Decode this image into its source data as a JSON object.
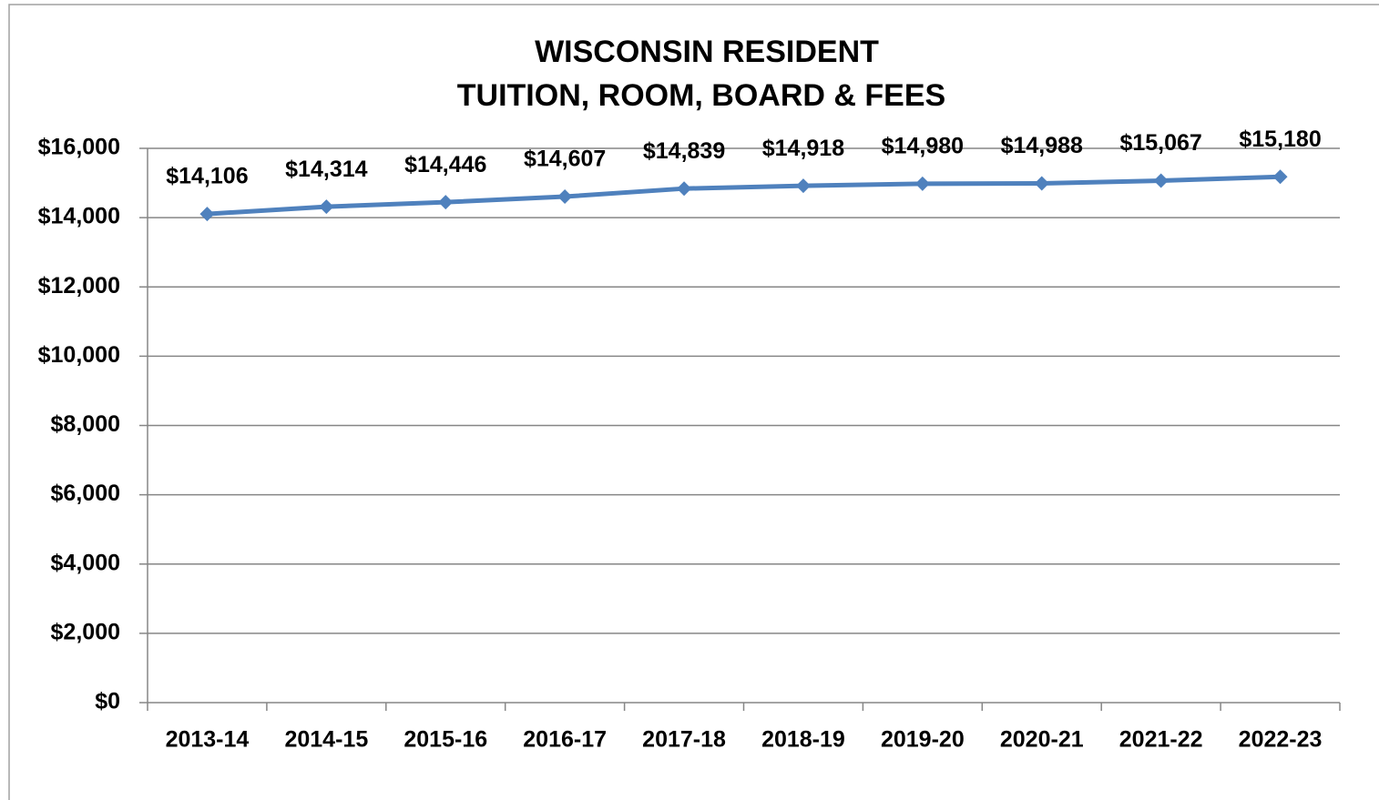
{
  "chart_data": {
    "type": "line",
    "title": [
      "WISCONSIN RESIDENT",
      "TUITION, ROOM, BOARD & FEES"
    ],
    "categories": [
      "2013-14",
      "2014-15",
      "2015-16",
      "2016-17",
      "2017-18",
      "2018-19",
      "2019-20",
      "2020-21",
      "2021-22",
      "2022-23"
    ],
    "series": [
      {
        "name": "Wisconsin Resident",
        "color": "#4f81bd",
        "values": [
          14106,
          14314,
          14446,
          14607,
          14839,
          14918,
          14980,
          14988,
          15067,
          15180
        ],
        "value_labels": [
          "$14,106",
          "$14,314",
          "$14,446",
          "$14,607",
          "$14,839",
          "$14,918",
          "$14,980",
          "$14,988",
          "$15,067",
          "$15,180"
        ]
      }
    ],
    "ylim": [
      0,
      16000
    ],
    "yticks": [
      {
        "value": 0,
        "label": "$0"
      },
      {
        "value": 2000,
        "label": "$2,000"
      },
      {
        "value": 4000,
        "label": "$4,000"
      },
      {
        "value": 6000,
        "label": "$6,000"
      },
      {
        "value": 8000,
        "label": "$8,000"
      },
      {
        "value": 10000,
        "label": "$10,000"
      },
      {
        "value": 12000,
        "label": "$12,000"
      },
      {
        "value": 14000,
        "label": "$14,000"
      },
      {
        "value": 16000,
        "label": "$16,000"
      }
    ],
    "grid": true
  }
}
